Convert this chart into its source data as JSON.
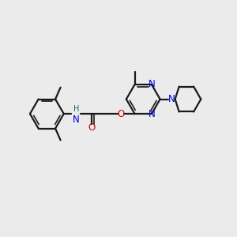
{
  "background_color": "#ebebeb",
  "bond_color": "#1a1a1a",
  "nitrogen_color": "#0000dd",
  "oxygen_color": "#cc0000",
  "nh_color": "#007070",
  "figsize": [
    3.0,
    3.0
  ],
  "dpi": 100,
  "xlim": [
    0,
    10
  ],
  "ylim": [
    0,
    10
  ]
}
